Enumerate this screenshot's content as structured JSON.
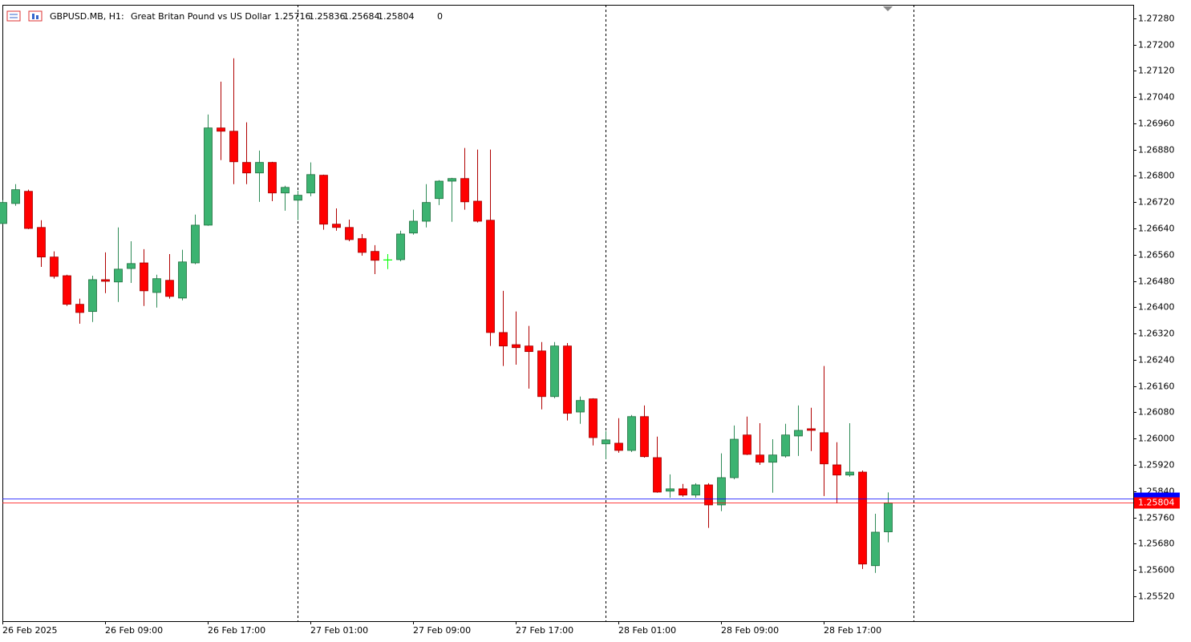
{
  "chart_data": {
    "type": "candlestick",
    "symbol": "GBPUSD.MB, H1:",
    "description": "Great Britan Pound vs US Dollar",
    "header_volume": 0,
    "categories": [
      "26 Feb 2025",
      null,
      null,
      null,
      null,
      null,
      null,
      null,
      "26 Feb 09:00",
      null,
      null,
      null,
      null,
      null,
      null,
      null,
      "26 Feb 17:00",
      null,
      null,
      null,
      null,
      null,
      null,
      null,
      "27 Feb 01:00",
      null,
      null,
      null,
      null,
      null,
      null,
      null,
      "27 Feb 09:00",
      null,
      null,
      null,
      null,
      null,
      null,
      null,
      "27 Feb 17:00",
      null,
      null,
      null,
      null,
      null,
      null,
      null,
      "28 Feb 01:00",
      null,
      null,
      null,
      null,
      null,
      null,
      null,
      "28 Feb 09:00",
      null,
      null,
      null,
      null,
      null,
      null,
      null,
      "28 Feb 17:00",
      null,
      null,
      null,
      null,
      null
    ],
    "open": [
      1.26655,
      1.26716,
      1.26753,
      1.26643,
      1.26553,
      1.26496,
      1.26409,
      1.26387,
      1.26484,
      1.26477,
      1.26518,
      1.26535,
      1.26445,
      1.26482,
      1.26428,
      1.26535,
      1.2665,
      1.26946,
      1.26936,
      1.26841,
      1.26809,
      1.26841,
      1.26748,
      1.26726,
      1.26748,
      1.26802,
      1.26653,
      1.26643,
      1.26609,
      1.2657,
      1.26544,
      1.26545,
      1.26626,
      1.26662,
      1.26731,
      1.26784,
      1.26792,
      1.26723,
      1.26665,
      1.26323,
      1.26286,
      1.26282,
      1.26267,
      1.26128,
      1.26282,
      1.26081,
      1.26121,
      1.25984,
      1.25986,
      1.25964,
      1.26067,
      1.25942,
      1.2584,
      1.25847,
      1.25828,
      1.25859,
      1.25798,
      1.25881,
      1.26011,
      1.2595,
      1.25928,
      1.25947,
      1.26008,
      1.2603,
      1.26018,
      1.2592,
      1.25889,
      1.25898,
      1.25613,
      1.25716
    ],
    "high": [
      1.26726,
      1.26775,
      1.26758,
      1.26665,
      1.2657,
      1.26499,
      1.26426,
      1.26496,
      1.26567,
      1.26643,
      1.26601,
      1.26577,
      1.26499,
      1.26562,
      1.26575,
      1.26682,
      1.26987,
      1.27087,
      1.27158,
      1.26963,
      1.26877,
      1.26843,
      1.2677,
      1.26755,
      1.26841,
      1.26804,
      1.26701,
      1.26667,
      1.26623,
      1.26589,
      1.26562,
      1.26633,
      1.26697,
      1.26775,
      1.26787,
      1.26794,
      1.26885,
      1.2688,
      1.2688,
      1.2645,
      1.26387,
      1.26343,
      1.26294,
      1.26294,
      1.26291,
      1.26128,
      1.26123,
      1.26023,
      1.26062,
      1.26072,
      1.26101,
      1.26006,
      1.25891,
      1.25862,
      1.25864,
      1.25864,
      1.25955,
      1.2604,
      1.26067,
      1.26047,
      1.25998,
      1.26045,
      1.26101,
      1.26094,
      1.26221,
      1.25989,
      1.26047,
      1.25903,
      1.25771,
      1.25836
    ],
    "low": [
      1.26653,
      1.26709,
      1.26638,
      1.26523,
      1.26487,
      1.26404,
      1.2635,
      1.26355,
      1.26443,
      1.26416,
      1.26474,
      1.26404,
      1.26399,
      1.26426,
      1.26421,
      1.26531,
      1.26648,
      1.26848,
      1.26775,
      1.26775,
      1.26721,
      1.26723,
      1.26694,
      1.26665,
      1.26738,
      1.26636,
      1.26633,
      1.26601,
      1.26557,
      1.26501,
      1.26516,
      1.2654,
      1.26621,
      1.26643,
      1.26711,
      1.2666,
      1.26697,
      1.26658,
      1.26282,
      1.26221,
      1.26225,
      1.26152,
      1.26089,
      1.26123,
      1.26055,
      1.26045,
      1.25979,
      1.25937,
      1.25957,
      1.25959,
      1.25942,
      1.25835,
      1.2582,
      1.25823,
      1.2582,
      1.25728,
      1.25779,
      1.25876,
      1.2595,
      1.2592,
      1.25835,
      1.25942,
      1.25947,
      1.25962,
      1.25825,
      1.25803,
      1.25884,
      1.25603,
      1.25591,
      1.25684
    ],
    "close": [
      1.26719,
      1.26758,
      1.2664,
      1.26553,
      1.26494,
      1.26409,
      1.26384,
      1.26484,
      1.26479,
      1.26516,
      1.26533,
      1.2645,
      1.26487,
      1.26433,
      1.26538,
      1.2665,
      1.26946,
      1.26936,
      1.26843,
      1.26809,
      1.26841,
      1.26748,
      1.26765,
      1.26741,
      1.26804,
      1.26653,
      1.26643,
      1.26606,
      1.26567,
      1.26543,
      1.26544,
      1.26623,
      1.26662,
      1.26719,
      1.26784,
      1.26792,
      1.26721,
      1.26662,
      1.26323,
      1.26282,
      1.26277,
      1.26265,
      1.26128,
      1.26282,
      1.26077,
      1.26116,
      1.26003,
      1.25996,
      1.25964,
      1.26067,
      1.25945,
      1.25837,
      1.25847,
      1.25828,
      1.25859,
      1.25798,
      1.25881,
      1.25998,
      1.25952,
      1.25928,
      1.2595,
      1.26011,
      1.26025,
      1.26025,
      1.25923,
      1.25889,
      1.25898,
      1.25618,
      1.25715,
      1.25804
    ],
    "up_color": "#3cb371",
    "down_color": "#ff0000",
    "doji_color": "#00ff00",
    "bid": 1.25804,
    "bid_color": "#ff0000",
    "ask": 1.25816,
    "ask_color": "#0000ff",
    "separators": [
      23,
      47,
      71
    ],
    "ylim": [
      1.25444,
      1.27321
    ],
    "yticks": [
      {
        "value": 1.2728,
        "label": "1.27280"
      },
      {
        "value": 1.272,
        "label": "1.27200"
      },
      {
        "value": 1.2712,
        "label": "1.27120"
      },
      {
        "value": 1.2704,
        "label": "1.27040"
      },
      {
        "value": 1.2696,
        "label": "1.26960"
      },
      {
        "value": 1.2688,
        "label": "1.26880"
      },
      {
        "value": 1.268,
        "label": "1.26800"
      },
      {
        "value": 1.2672,
        "label": "1.26720"
      },
      {
        "value": 1.2664,
        "label": "1.26640"
      },
      {
        "value": 1.2656,
        "label": "1.26560"
      },
      {
        "value": 1.2648,
        "label": "1.26480"
      },
      {
        "value": 1.264,
        "label": "1.26400"
      },
      {
        "value": 1.2632,
        "label": "1.26320"
      },
      {
        "value": 1.2624,
        "label": "1.26240"
      },
      {
        "value": 1.2616,
        "label": "1.26160"
      },
      {
        "value": 1.2608,
        "label": "1.26080"
      },
      {
        "value": 1.26,
        "label": "1.26000"
      },
      {
        "value": 1.2592,
        "label": "1.25920"
      },
      {
        "value": 1.2584,
        "label": "1.25840"
      },
      {
        "value": 1.2576,
        "label": "1.25760"
      },
      {
        "value": 1.2568,
        "label": "1.25680"
      },
      {
        "value": 1.256,
        "label": "1.25600"
      },
      {
        "value": 1.2552,
        "label": "1.25520"
      }
    ]
  }
}
